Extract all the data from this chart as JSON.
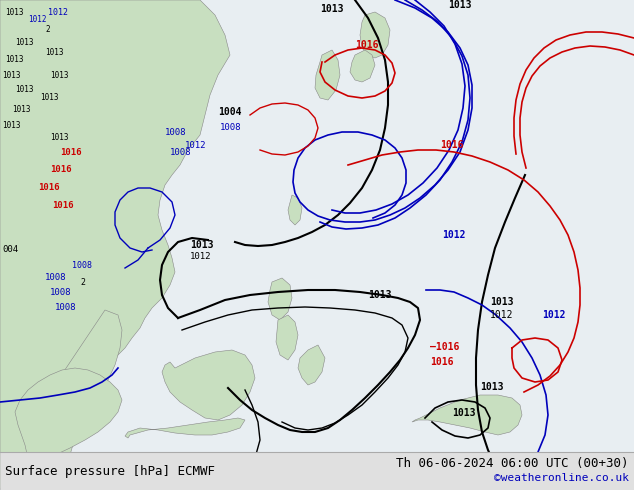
{
  "title_left": "Surface pressure [hPa] ECMWF",
  "title_right": "Th 06-06-2024 06:00 UTC (00+30)",
  "copyright": "©weatheronline.co.uk",
  "bg_color": "#e8eef2",
  "map_color_land": "#c8dfc0",
  "map_color_land2": "#d0e8c8",
  "border_color": "#888888",
  "bottom_bar_color": "#e0e0e0",
  "text_color_black": "#000000",
  "text_color_blue": "#0000bb",
  "text_color_red": "#cc0000",
  "text_color_gray": "#888888",
  "font_size_label": 9,
  "font_size_copyright": 8,
  "figwidth": 6.34,
  "figheight": 4.9,
  "dpi": 100
}
